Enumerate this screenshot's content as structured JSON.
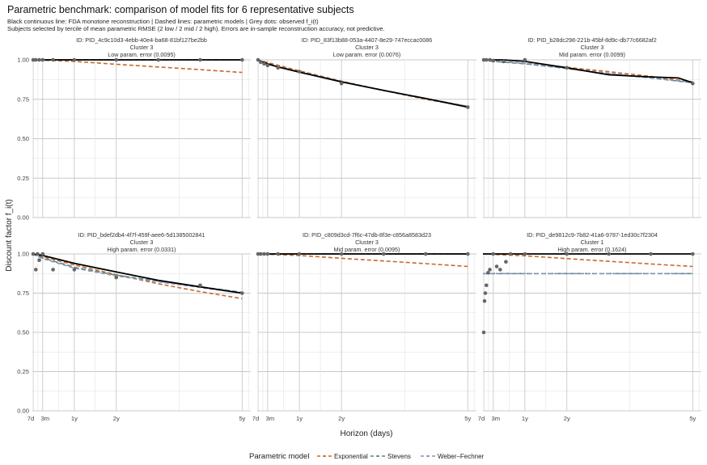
{
  "title": "Parametric benchmark: comparison of model fits for 6 representative subjects",
  "subtitle_lines": [
    "Black continuous line: FDA monotone reconstruction | Dashed lines: parametric models | Grey dots: observed f_i(t)",
    "Subjects selected by tercile of mean parametric RMSE (2 low / 2 mid / 2 high). Errors are in-sample reconstruction accuracy, not predictive."
  ],
  "colors": {
    "fda": "#000000",
    "observed": "#666666",
    "Exponential": "#c8692a",
    "Stevens": "#4f8a8b",
    "Weber–Fechner": "#8a93b5",
    "grid": "#c8c8c8"
  },
  "chart_data": {
    "type": "line",
    "xlabel": "Horizon (days)",
    "ylabel": "Discount factor f_i(t)",
    "ylim": [
      0,
      1
    ],
    "yticks": [
      0,
      0.25,
      0.5,
      0.75,
      1
    ],
    "ytick_labels": [
      "0.00",
      "0.25",
      "0.50",
      "0.75",
      "1.00"
    ],
    "xticks": [
      7,
      90,
      365,
      730,
      1825
    ],
    "xtick_labels": [
      "7d",
      "3m",
      "1y",
      "2y",
      "5y"
    ],
    "x_range": [
      0,
      1900
    ],
    "grid": true,
    "legend_title": "Parametric model",
    "legend_position": "bottom",
    "legend": [
      "Exponential",
      "Stevens",
      "Weber–Fechner"
    ],
    "panels": [
      {
        "id": "ID: PID_4c9c10d3-4ebb-40e4-ba68-81bf127be2bb",
        "cluster": "Cluster 3",
        "error": "Low param. error (0.0095)",
        "observed": [
          [
            7,
            1
          ],
          [
            30,
            1
          ],
          [
            60,
            1
          ],
          [
            90,
            1
          ],
          [
            180,
            1
          ],
          [
            365,
            1
          ],
          [
            730,
            1
          ],
          [
            1095,
            1
          ],
          [
            1460,
            1
          ],
          [
            1825,
            1
          ]
        ],
        "fda": [
          [
            0,
            1
          ],
          [
            1825,
            1
          ]
        ],
        "series": [
          {
            "name": "Exponential",
            "values": [
              [
                0,
                1
              ],
              [
                365,
                0.99
              ],
              [
                730,
                0.972
              ],
              [
                1095,
                0.955
              ],
              [
                1460,
                0.938
              ],
              [
                1825,
                0.92
              ]
            ]
          },
          {
            "name": "Stevens",
            "values": [
              [
                0,
                1
              ],
              [
                1825,
                1
              ]
            ]
          },
          {
            "name": "Weber–Fechner",
            "values": [
              [
                0,
                1
              ],
              [
                1825,
                1
              ]
            ]
          }
        ]
      },
      {
        "id": "ID: PID_83f13b88-053a-4407-8e29-747eccac0086",
        "cluster": "Cluster 3",
        "error": "Low param. error (0.0076)",
        "observed": [
          [
            7,
            1
          ],
          [
            30,
            0.985
          ],
          [
            60,
            0.975
          ],
          [
            90,
            0.965
          ],
          [
            180,
            0.95
          ],
          [
            365,
            0.925
          ],
          [
            730,
            0.85
          ],
          [
            1825,
            0.7
          ]
        ],
        "fda": [
          [
            0,
            1
          ],
          [
            90,
            0.975
          ],
          [
            180,
            0.955
          ],
          [
            365,
            0.922
          ],
          [
            730,
            0.86
          ],
          [
            1095,
            0.806
          ],
          [
            1460,
            0.755
          ],
          [
            1825,
            0.7
          ]
        ],
        "series": [
          {
            "name": "Exponential",
            "values": [
              [
                0,
                1
              ],
              [
                365,
                0.93
              ],
              [
                730,
                0.865
              ],
              [
                1095,
                0.805
              ],
              [
                1460,
                0.75
              ],
              [
                1825,
                0.705
              ]
            ]
          },
          {
            "name": "Stevens",
            "values": [
              [
                0,
                1
              ],
              [
                90,
                0.972
              ],
              [
                365,
                0.924
              ],
              [
                730,
                0.862
              ],
              [
                1095,
                0.806
              ],
              [
                1460,
                0.755
              ],
              [
                1825,
                0.705
              ]
            ]
          },
          {
            "name": "Weber–Fechner",
            "values": [
              [
                0,
                1
              ],
              [
                90,
                0.972
              ],
              [
                365,
                0.924
              ],
              [
                730,
                0.862
              ],
              [
                1095,
                0.806
              ],
              [
                1460,
                0.755
              ],
              [
                1825,
                0.705
              ]
            ]
          }
        ]
      },
      {
        "id": "ID: PID_b28dc298-221b-45bf-8d9c-db77c6682af2",
        "cluster": "Cluster 3",
        "error": "Mid param. error (0.0099)",
        "observed": [
          [
            7,
            1
          ],
          [
            30,
            1
          ],
          [
            60,
            1
          ],
          [
            90,
            0.995
          ],
          [
            180,
            0.99
          ],
          [
            365,
            1
          ],
          [
            730,
            0.95
          ],
          [
            1825,
            0.85
          ]
        ],
        "fda": [
          [
            0,
            1
          ],
          [
            180,
            1
          ],
          [
            365,
            0.99
          ],
          [
            730,
            0.95
          ],
          [
            1095,
            0.905
          ],
          [
            1460,
            0.892
          ],
          [
            1700,
            0.885
          ],
          [
            1825,
            0.855
          ]
        ],
        "series": [
          {
            "name": "Exponential",
            "values": [
              [
                0,
                1
              ],
              [
                365,
                0.978
              ],
              [
                730,
                0.953
              ],
              [
                1095,
                0.925
              ],
              [
                1460,
                0.895
              ],
              [
                1825,
                0.86
              ]
            ]
          },
          {
            "name": "Stevens",
            "values": [
              [
                0,
                1
              ],
              [
                90,
                0.99
              ],
              [
                365,
                0.975
              ],
              [
                730,
                0.945
              ],
              [
                1095,
                0.912
              ],
              [
                1460,
                0.885
              ],
              [
                1825,
                0.855
              ]
            ]
          },
          {
            "name": "Weber–Fechner",
            "values": [
              [
                0,
                1
              ],
              [
                90,
                0.99
              ],
              [
                365,
                0.978
              ],
              [
                730,
                0.948
              ],
              [
                1095,
                0.915
              ],
              [
                1460,
                0.887
              ],
              [
                1825,
                0.857
              ]
            ]
          }
        ]
      },
      {
        "id": "ID: PID_bdef2db4-4f7f-459f-aee6-5d1385002841",
        "cluster": "Cluster 3",
        "error": "High param. error (0.0331)",
        "observed": [
          [
            7,
            1
          ],
          [
            30,
            0.9
          ],
          [
            45,
            1
          ],
          [
            60,
            0.96
          ],
          [
            90,
            1
          ],
          [
            180,
            0.9
          ],
          [
            365,
            0.9
          ],
          [
            730,
            0.85
          ],
          [
            1460,
            0.8
          ],
          [
            1825,
            0.75
          ]
        ],
        "fda": [
          [
            0,
            1
          ],
          [
            90,
            0.99
          ],
          [
            365,
            0.94
          ],
          [
            730,
            0.885
          ],
          [
            1095,
            0.832
          ],
          [
            1460,
            0.79
          ],
          [
            1825,
            0.75
          ]
        ],
        "series": [
          {
            "name": "Exponential",
            "values": [
              [
                0,
                1
              ],
              [
                365,
                0.93
              ],
              [
                730,
                0.868
              ],
              [
                1095,
                0.81
              ],
              [
                1460,
                0.76
              ],
              [
                1825,
                0.715
              ]
            ]
          },
          {
            "name": "Stevens",
            "values": [
              [
                0,
                1
              ],
              [
                90,
                0.975
              ],
              [
                365,
                0.915
              ],
              [
                730,
                0.865
              ],
              [
                1095,
                0.827
              ],
              [
                1460,
                0.79
              ],
              [
                1825,
                0.755
              ]
            ]
          },
          {
            "name": "Weber–Fechner",
            "values": [
              [
                0,
                1
              ],
              [
                90,
                0.97
              ],
              [
                365,
                0.91
              ],
              [
                730,
                0.86
              ],
              [
                1095,
                0.822
              ],
              [
                1460,
                0.786
              ],
              [
                1825,
                0.75
              ]
            ]
          }
        ]
      },
      {
        "id": "ID: PID_c809d3cd-7f6c-47db-8f3e-c856a8583d23",
        "cluster": "Cluster 3",
        "error": "Mid param. error (0.0095)",
        "observed": [
          [
            7,
            1
          ],
          [
            30,
            1
          ],
          [
            60,
            1
          ],
          [
            90,
            1
          ],
          [
            180,
            1
          ],
          [
            365,
            1
          ],
          [
            730,
            1
          ],
          [
            1095,
            1
          ],
          [
            1460,
            1
          ],
          [
            1825,
            1
          ]
        ],
        "fda": [
          [
            0,
            1
          ],
          [
            1825,
            1
          ]
        ],
        "series": [
          {
            "name": "Exponential",
            "values": [
              [
                0,
                1
              ],
              [
                365,
                0.99
              ],
              [
                730,
                0.972
              ],
              [
                1095,
                0.955
              ],
              [
                1460,
                0.938
              ],
              [
                1825,
                0.92
              ]
            ]
          },
          {
            "name": "Stevens",
            "values": [
              [
                0,
                1
              ],
              [
                1825,
                1
              ]
            ]
          },
          {
            "name": "Weber–Fechner",
            "values": [
              [
                0,
                1
              ],
              [
                1825,
                1
              ]
            ]
          }
        ]
      },
      {
        "id": "ID: PID_de9812c9-7b82-41a6-9787-1ed30c7f2304",
        "cluster": "Cluster 1",
        "error": "High param. error (0.1624)",
        "observed": [
          [
            7,
            0.5
          ],
          [
            14,
            0.7
          ],
          [
            21,
            0.75
          ],
          [
            30,
            0.8
          ],
          [
            45,
            0.88
          ],
          [
            60,
            0.9
          ],
          [
            90,
            1
          ],
          [
            120,
            0.92
          ],
          [
            150,
            0.9
          ],
          [
            200,
            0.95
          ],
          [
            240,
            1
          ],
          [
            365,
            1
          ],
          [
            730,
            1
          ],
          [
            1095,
            1
          ],
          [
            1460,
            1
          ],
          [
            1825,
            1
          ]
        ],
        "fda": [
          [
            0,
            1
          ],
          [
            1825,
            1
          ]
        ],
        "series": [
          {
            "name": "Exponential",
            "values": [
              [
                0,
                1
              ],
              [
                365,
                0.988
              ],
              [
                730,
                0.97
              ],
              [
                1095,
                0.953
              ],
              [
                1460,
                0.936
              ],
              [
                1825,
                0.92
              ]
            ]
          },
          {
            "name": "Stevens",
            "values": [
              [
                0,
                0.875
              ],
              [
                1825,
                0.875
              ]
            ]
          },
          {
            "name": "Weber–Fechner",
            "values": [
              [
                0,
                0.875
              ],
              [
                1825,
                0.875
              ]
            ]
          }
        ]
      }
    ]
  }
}
